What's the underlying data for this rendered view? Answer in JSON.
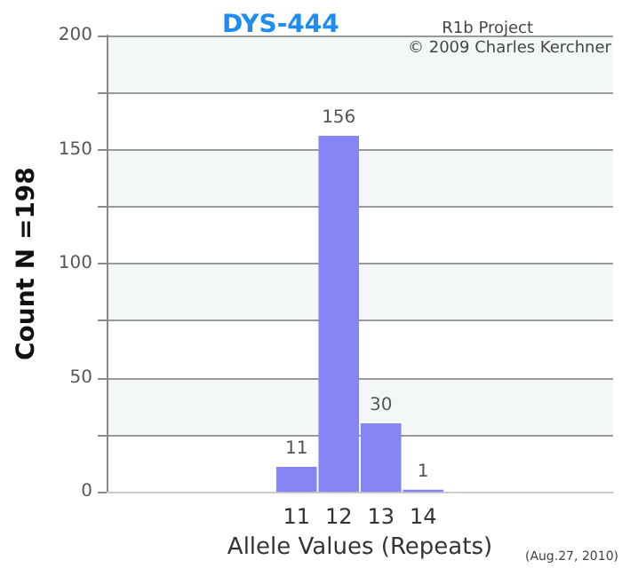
{
  "chart_data": {
    "type": "bar",
    "title": "DYS-444",
    "xlabel": "Allele Values (Repeats)",
    "ylabel": "Count N =198",
    "categories": [
      null,
      null,
      null,
      null,
      "11",
      "12",
      "13",
      "14",
      null,
      null,
      null,
      null
    ],
    "values": [
      null,
      null,
      null,
      null,
      11,
      156,
      30,
      1,
      null,
      null,
      null,
      null
    ],
    "color": "#8585f5",
    "data_labels": true,
    "grid": "y",
    "ylim": [
      0,
      200
    ],
    "yticks": [
      0,
      {
        "value": 25,
        "label": null
      },
      50,
      {
        "value": 75,
        "label": null
      },
      100,
      {
        "value": 125,
        "label": null
      },
      150,
      {
        "value": 175,
        "label": null
      },
      200
    ],
    "annotations": [
      "R1b Project",
      "© 2009 Charles Kerchner",
      "(Aug.27, 2010)"
    ]
  }
}
